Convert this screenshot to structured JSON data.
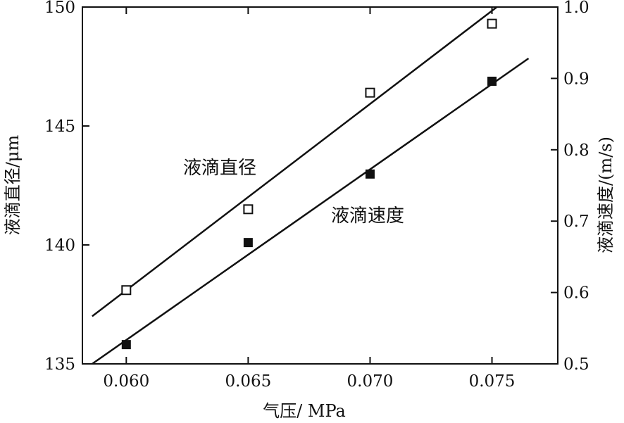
{
  "chart_data": {
    "type": "scatter",
    "xlabel": "气压/ MPa",
    "ylabel_left": "液滴直径/μm",
    "ylabel_right": "液滴速度/(m/s)",
    "xlim": [
      0.0582,
      0.0777
    ],
    "ylim_left": [
      135,
      150
    ],
    "ylim_right": [
      0.5,
      1.0
    ],
    "x_ticks": [
      "0.060",
      "0.065",
      "0.070",
      "0.075"
    ],
    "x_tick_values": [
      0.06,
      0.065,
      0.07,
      0.075
    ],
    "y_left_ticks": [
      "135",
      "140",
      "145",
      "150"
    ],
    "y_left_tick_values": [
      135,
      140,
      145,
      150
    ],
    "y_right_ticks": [
      "0.5",
      "0.6",
      "0.7",
      "0.8",
      "0.9",
      "1.0"
    ],
    "y_right_tick_values": [
      0.5,
      0.6,
      0.7,
      0.8,
      0.9,
      1.0
    ],
    "series": [
      {
        "name": "液滴直径",
        "axis": "left",
        "marker": "open-square",
        "x": [
          0.06,
          0.065,
          0.07,
          0.075
        ],
        "y": [
          138.1,
          141.5,
          146.4,
          149.3
        ],
        "fit_line": {
          "x": [
            0.0586,
            0.0752
          ],
          "y": [
            137.0,
            150.0
          ]
        }
      },
      {
        "name": "液滴速度",
        "axis": "right",
        "marker": "filled-square",
        "x": [
          0.06,
          0.065,
          0.07,
          0.075
        ],
        "y": [
          0.527,
          0.67,
          0.766,
          0.896
        ],
        "fit_line": {
          "x": [
            0.0586,
            0.0765
          ],
          "y": [
            0.5,
            0.928
          ]
        }
      }
    ],
    "annotations": [
      "液滴直径",
      "液滴速度"
    ],
    "grid": false,
    "legend": "none"
  }
}
